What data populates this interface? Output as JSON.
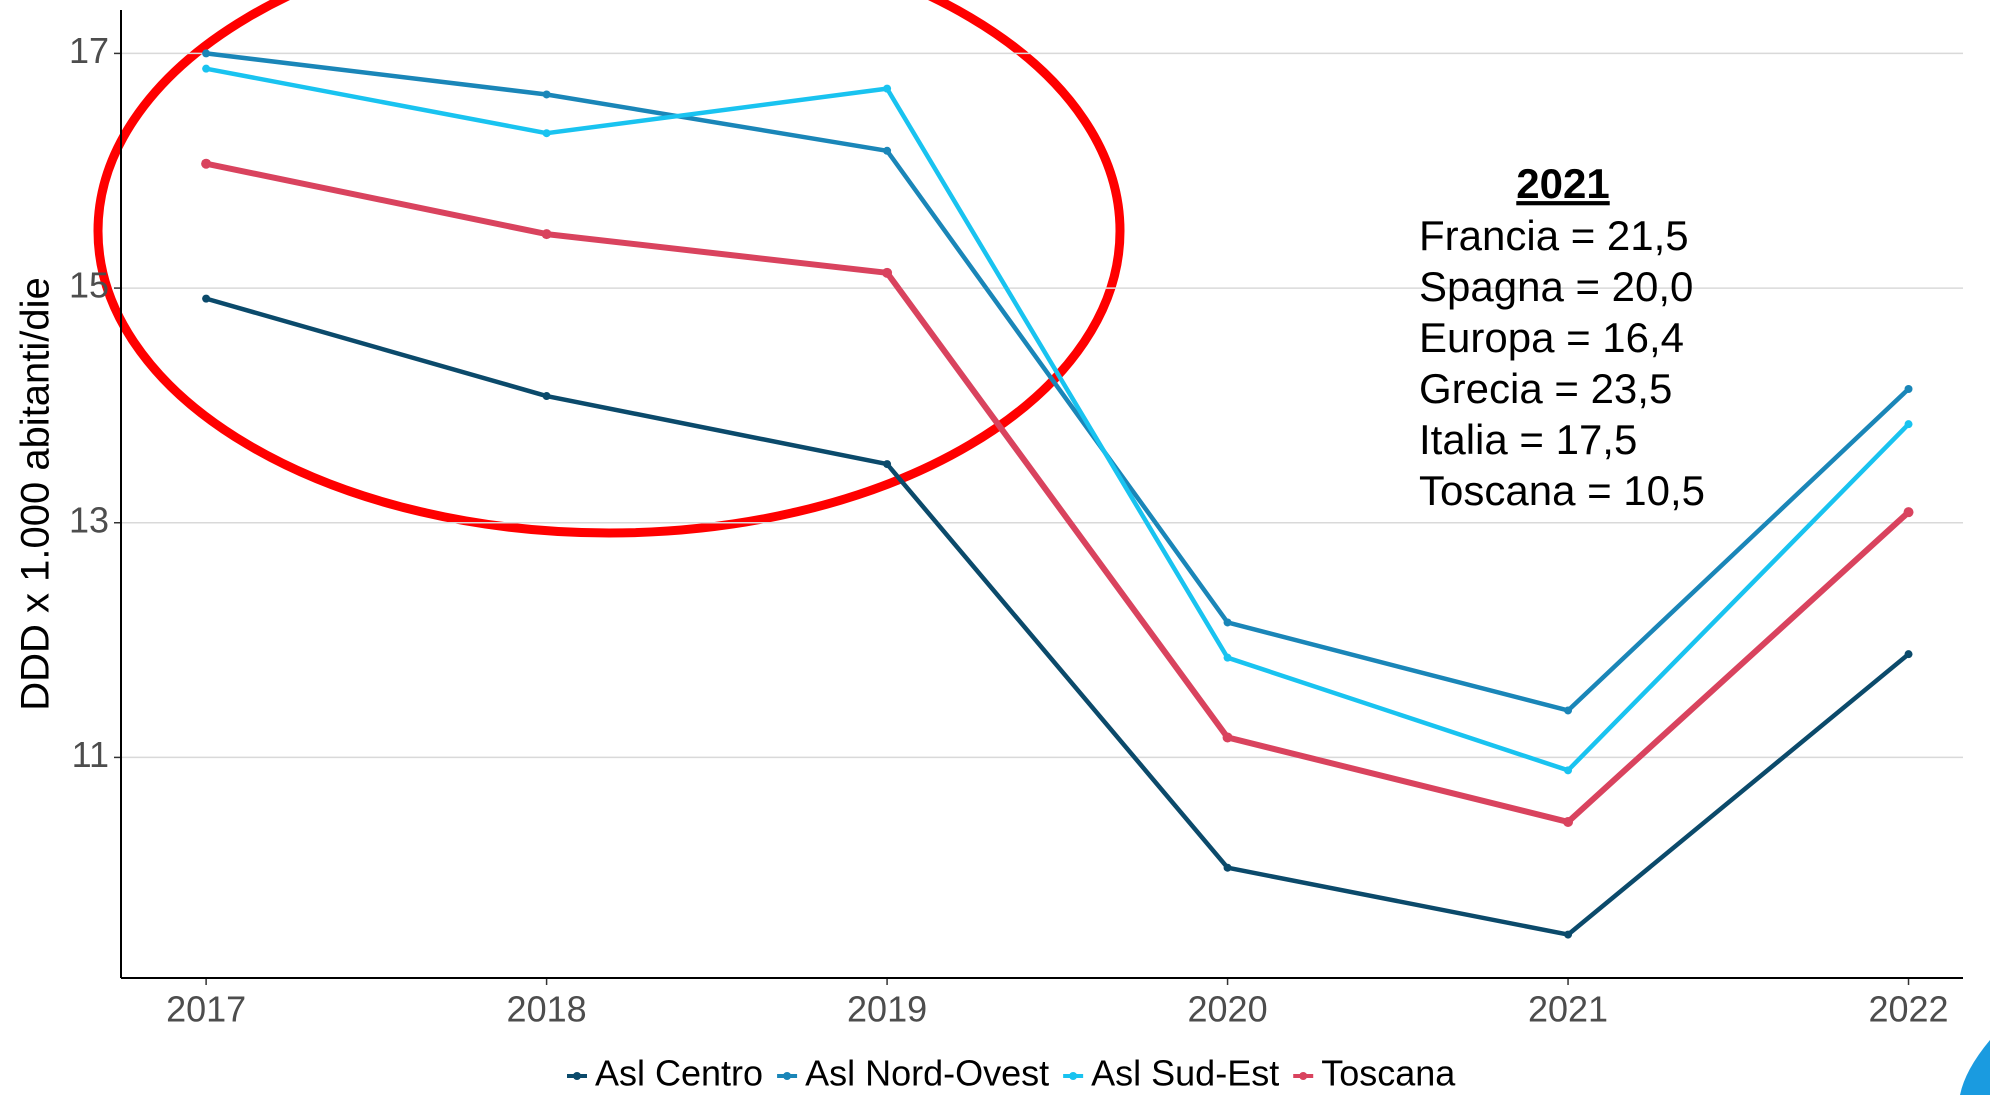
{
  "chart_data": {
    "type": "line",
    "y_label": "DDD x 1.000 abitanti/die",
    "x": [
      2017,
      2018,
      2019,
      2020,
      2021,
      2022
    ],
    "xlim": [
      2016.75,
      2022.16
    ],
    "xticks": [
      2017,
      2018,
      2019,
      2020,
      2021,
      2022
    ],
    "ylim": [
      9.12,
      17.37
    ],
    "yticks": [
      11,
      13,
      15,
      17
    ],
    "grid": true,
    "legend": "bottom",
    "series": [
      {
        "name": "Asl Centro",
        "color": "#0b4a6b",
        "values": [
          14.91,
          14.08,
          13.5,
          10.06,
          9.49,
          11.88
        ]
      },
      {
        "name": "Asl Nord-Ovest",
        "color": "#1a86b8",
        "values": [
          17.0,
          16.65,
          16.17,
          12.15,
          11.4,
          14.14
        ]
      },
      {
        "name": "Asl Sud-Est",
        "color": "#19c3f0",
        "values": [
          16.87,
          16.32,
          16.7,
          11.85,
          10.89,
          13.84
        ]
      },
      {
        "name": "Toscana",
        "color": "#d9435e",
        "values": [
          16.06,
          15.46,
          15.13,
          11.17,
          10.45,
          13.09
        ]
      }
    ],
    "annotation": {
      "title": "2021",
      "lines": [
        "Francia = 21,5",
        "Spagna = 20,0",
        "Europa = 16,4",
        "Grecia = 23,5",
        "Italia = 17,5",
        "Toscana = 10,5"
      ]
    }
  }
}
